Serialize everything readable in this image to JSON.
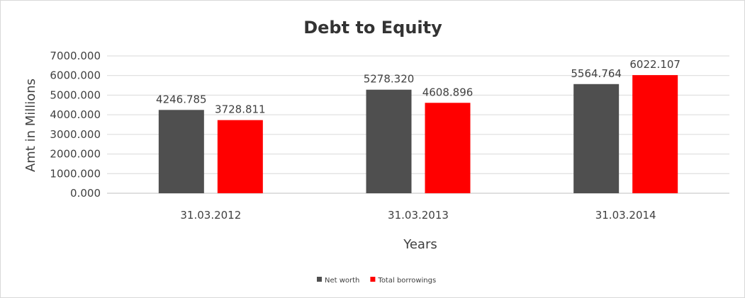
{
  "chart_data": {
    "type": "bar",
    "title": "Debt to Equity",
    "xlabel": "Years",
    "ylabel": "Amt in Millions",
    "categories": [
      "31.03.2012",
      "31.03.2013",
      "31.03.2014"
    ],
    "series": [
      {
        "name": "Net worth",
        "color": "#4f4f4f",
        "values": [
          4246.785,
          5278.32,
          5564.764
        ],
        "labels": [
          "4246.785",
          "5278.320",
          "5564.764"
        ]
      },
      {
        "name": "Total borrowings",
        "color": "#ff0000",
        "values": [
          3728.811,
          4608.896,
          6022.107
        ],
        "labels": [
          "3728.811",
          "4608.896",
          "6022.107"
        ]
      }
    ],
    "ylim": [
      0,
      7000
    ],
    "yticks": [
      0,
      1000,
      2000,
      3000,
      4000,
      5000,
      6000,
      7000
    ],
    "ytick_labels": [
      "0.000",
      "1000.000",
      "2000.000",
      "3000.000",
      "4000.000",
      "5000.000",
      "6000.000",
      "7000.000"
    ],
    "grid": true,
    "legend": "bottom"
  }
}
